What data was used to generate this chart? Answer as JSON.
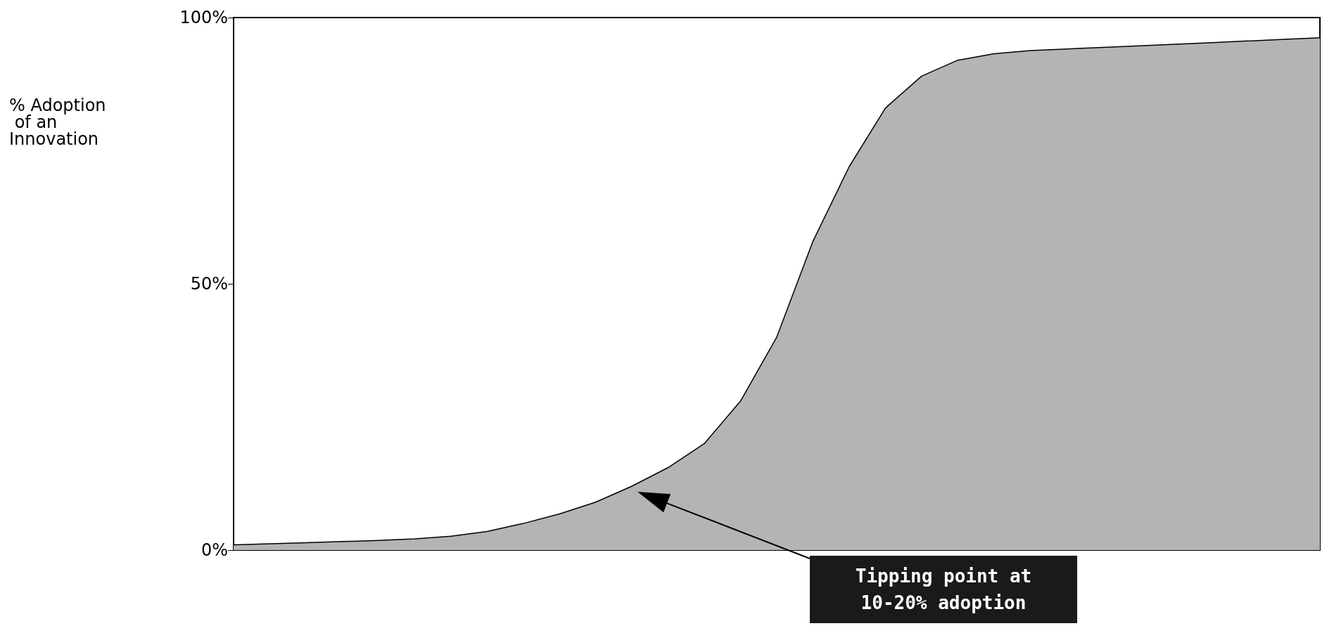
{
  "chart_data": {
    "type": "area",
    "ylabel": "% Adoption of an Innovation",
    "categories": [
      null,
      null,
      null,
      null,
      null,
      null,
      null,
      null,
      null,
      null,
      null,
      null,
      null,
      null,
      null,
      null,
      null,
      null,
      null,
      null,
      null,
      null,
      null,
      null,
      null,
      null,
      null,
      null,
      null,
      null,
      null
    ],
    "series": [
      {
        "color": "#b4b4b4",
        "values": [
          1.0,
          1.2,
          1.4,
          1.6,
          1.8,
          2.1,
          2.6,
          3.5,
          5.0,
          6.8,
          9.0,
          12,
          15.5,
          20,
          28,
          40,
          58,
          72,
          83,
          89,
          92,
          93.2,
          93.8,
          94.1,
          94.4,
          94.7,
          95.0,
          95.3,
          95.6,
          95.9,
          96.2
        ]
      }
    ],
    "ylim": [
      0,
      100
    ],
    "yticks": [
      {
        "value": 0,
        "label": "0%"
      },
      {
        "value": 50,
        "label": "50%"
      },
      {
        "value": 100,
        "label": "100%"
      }
    ],
    "annotations": [
      "Tipping point at 10-20% adoption"
    ]
  }
}
